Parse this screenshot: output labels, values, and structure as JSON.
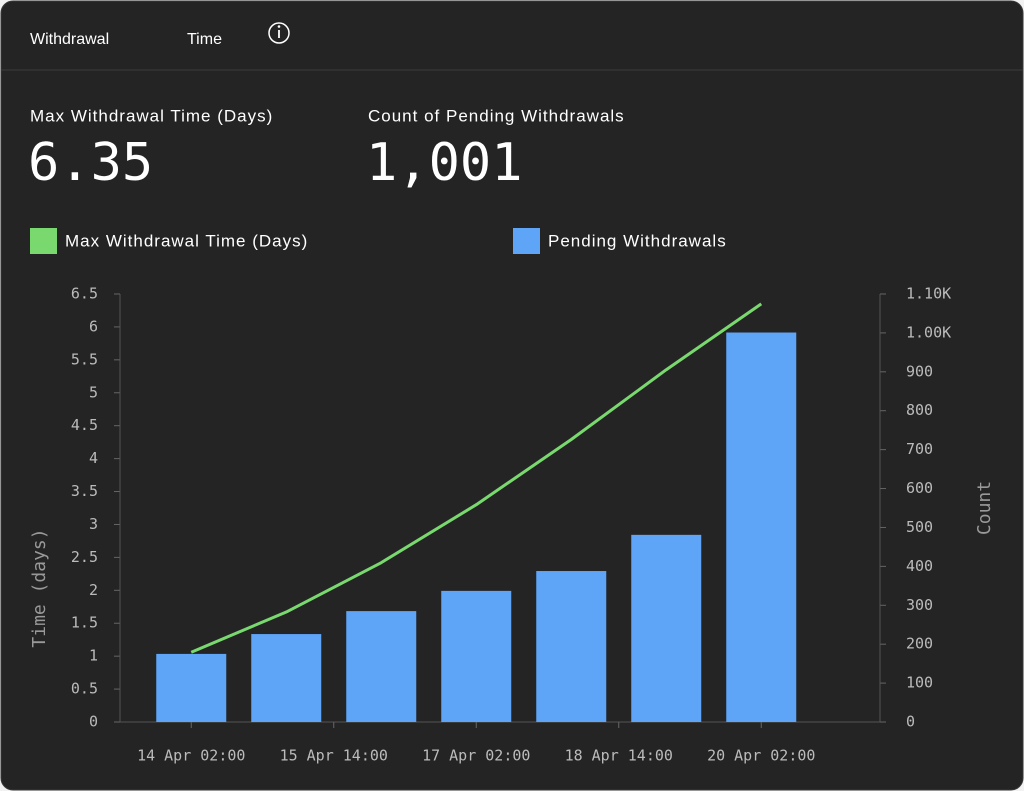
{
  "header": {
    "tabs": [
      "Withdrawal",
      "Time"
    ]
  },
  "stats": [
    {
      "label": "Max Withdrawal Time (Days)",
      "value": "6.35"
    },
    {
      "label": "Count of Pending Withdrawals",
      "value": "1,001"
    }
  ],
  "chart_data": {
    "type": "combo",
    "x": [
      "14 Apr 02:00",
      "15 Apr 02:00",
      "16 Apr 02:00",
      "17 Apr 02:00",
      "18 Apr 02:00",
      "19 Apr 02:00",
      "20 Apr 02:00"
    ],
    "xlim": [
      "13 Apr 08:00",
      "21 Apr 08:00"
    ],
    "xticks": [
      "14 Apr 02:00",
      "15 Apr 14:00",
      "17 Apr 02:00",
      "18 Apr 14:00",
      "20 Apr 02:00"
    ],
    "series": [
      {
        "name": "Max Withdrawal Time (Days)",
        "color": "#79d96f",
        "kind": "line",
        "values": [
          1.06,
          1.67,
          2.42,
          3.3,
          4.29,
          5.35,
          6.35
        ]
      },
      {
        "name": "Pending Withdrawals",
        "color": "#5ea5f8",
        "kind": "bar",
        "axis": "y2",
        "values": [
          175,
          226,
          285,
          337,
          388,
          481,
          1001
        ]
      }
    ],
    "ylabel": "Time (days)",
    "y2label": "Count",
    "ylim": [
      0,
      6.5
    ],
    "yticks": [
      0,
      0.5,
      1,
      1.5,
      2,
      2.5,
      3,
      3.5,
      4,
      4.5,
      5,
      5.5,
      6,
      6.5
    ],
    "y2lim": [
      0,
      1100
    ],
    "y2ticks": [
      0,
      100,
      200,
      300,
      400,
      500,
      600,
      700,
      800,
      900,
      {
        "value": 1000,
        "label": "1.00K"
      },
      {
        "value": 1100,
        "label": "1.10K"
      }
    ]
  }
}
